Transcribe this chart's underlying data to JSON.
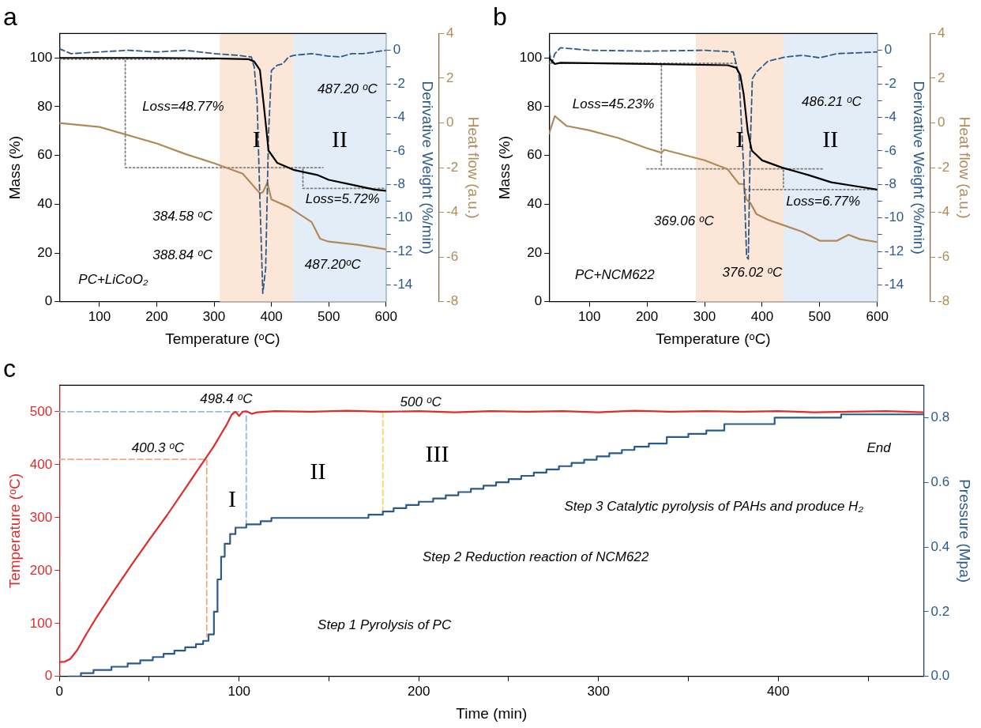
{
  "chart_data": [
    {
      "type": "line",
      "title": "a",
      "xlabel": "Temperature (ᵒC)",
      "ylabel": "Mass (%)",
      "y2label": "Derivative Weight (%/min)",
      "y3label": "Heat flow (a.u.)",
      "xlim": [
        30,
        600
      ],
      "xticks": [
        100,
        200,
        300,
        400,
        500,
        600
      ],
      "ylim": [
        0,
        110
      ],
      "yticks": [
        0,
        20,
        40,
        60,
        80,
        100
      ],
      "y2lim": [
        -15,
        1
      ],
      "y2ticks": [
        0,
        {
          "value": -1,
          "label": null
        },
        -2,
        {
          "value": -3,
          "label": null
        },
        -4,
        {
          "value": -5,
          "label": null
        },
        -6,
        {
          "value": -7,
          "label": null
        },
        -8,
        {
          "value": -9,
          "label": null
        },
        -10,
        {
          "value": -11,
          "label": null
        },
        -12,
        {
          "value": -13,
          "label": null
        },
        -14
      ],
      "y3lim": [
        -8,
        4
      ],
      "y3ticks": [
        4,
        2,
        0,
        -2,
        -4,
        -6,
        -8
      ],
      "grid": false,
      "legend": false,
      "bands": [
        {
          "axis": "x",
          "from": 310,
          "to": 438,
          "label": "I",
          "color": "#fbe6d8"
        },
        {
          "axis": "x",
          "from": 438,
          "to": 600,
          "label": "II",
          "color": "#e3edf8"
        }
      ],
      "series": [
        {
          "color": "#000000",
          "axis": "y",
          "line_style": "solid",
          "x": [
            30,
            100,
            200,
            300,
            360,
            370,
            380,
            387,
            395,
            410,
            440,
            480,
            500,
            540,
            580,
            600
          ],
          "values": [
            100,
            100,
            100,
            99.8,
            99.5,
            98.5,
            95,
            80,
            62,
            57,
            54,
            52,
            50,
            48,
            46,
            45.5
          ]
        },
        {
          "color": "#2e5a88",
          "axis": "y2",
          "line_style": "dashed",
          "x": [
            30,
            50,
            100,
            150,
            200,
            250,
            300,
            340,
            365,
            370,
            375,
            380,
            385,
            390,
            395,
            400,
            410,
            420,
            430,
            440,
            470,
            500,
            520,
            540,
            560,
            600
          ],
          "values": [
            0.1,
            -0.2,
            -0.1,
            0.0,
            -0.1,
            0.0,
            -0.2,
            -0.3,
            -0.4,
            -1,
            -3,
            -9,
            -14.5,
            -13,
            -5,
            -1.2,
            -0.9,
            -0.8,
            -0.4,
            -0.3,
            -0.2,
            -0.35,
            -0.4,
            -0.2,
            -0.2,
            0
          ]
        },
        {
          "color": "#b08a5a",
          "axis": "y3",
          "line_style": "solid",
          "x": [
            30,
            100,
            200,
            250,
            300,
            350,
            380,
            385,
            393,
            400,
            430,
            470,
            485,
            500,
            550,
            600
          ],
          "values": [
            0,
            -0.18,
            -0.92,
            -1.39,
            -1.8,
            -2.27,
            -3.15,
            -3.1,
            -2.68,
            -3.42,
            -3.76,
            -4.43,
            -5.18,
            -5.31,
            -5.45,
            -5.65
          ]
        },
        {
          "color": "#808080",
          "axis": "y",
          "line_style": "dotted",
          "x": [
            30,
            300
          ],
          "values": [
            99.5,
            99.5
          ]
        },
        {
          "color": "#808080",
          "axis": "y",
          "line_style": "dotted",
          "x": [
            145,
            490
          ],
          "values": [
            55,
            55
          ]
        },
        {
          "color": "#808080",
          "axis": "y",
          "line_style": "dotted",
          "x": [
            455,
            600
          ],
          "values": [
            46.5,
            46.5
          ]
        },
        {
          "color": "#808080",
          "axis": "y",
          "line_style": "dotted",
          "x": [
            145,
            145
          ],
          "values": [
            99,
            56
          ]
        },
        {
          "color": "#808080",
          "axis": "y",
          "line_style": "dotted",
          "x": [
            455,
            455
          ],
          "values": [
            54.5,
            47.5
          ]
        }
      ],
      "annotations": [
        "Loss=48.77%",
        "487.20 ᵒC",
        "Loss=5.72%",
        "384.58 ᵒC",
        "388.84 ᵒC",
        "487.20ᵒC",
        "PC+LiCoO₂"
      ]
    },
    {
      "type": "line",
      "title": "b",
      "xlabel": "Temperature (ᵒC)",
      "ylabel": "Mass (%)",
      "y2label": "Derivative Weight (%/min)",
      "y3label": "Heat flow (a.u.)",
      "xlim": [
        30,
        600
      ],
      "xticks": [
        100,
        200,
        300,
        400,
        500,
        600
      ],
      "ylim": [
        0,
        110
      ],
      "yticks": [
        0,
        20,
        40,
        60,
        80,
        100
      ],
      "y2lim": [
        -15,
        1
      ],
      "y2ticks": [
        0,
        {
          "value": -1,
          "label": null
        },
        -2,
        {
          "value": -3,
          "label": null
        },
        -4,
        {
          "value": -5,
          "label": null
        },
        -6,
        {
          "value": -7,
          "label": null
        },
        -8,
        {
          "value": -9,
          "label": null
        },
        -10,
        {
          "value": -11,
          "label": null
        },
        -12,
        {
          "value": -13,
          "label": null
        },
        -14
      ],
      "y3lim": [
        -8,
        4
      ],
      "y3ticks": [
        4,
        2,
        0,
        -2,
        -4,
        -6,
        -8
      ],
      "grid": false,
      "legend": false,
      "bands": [
        {
          "axis": "x",
          "from": 285,
          "to": 437,
          "label": "I",
          "color": "#fbe6d8"
        },
        {
          "axis": "x",
          "from": 437,
          "to": 600,
          "label": "II",
          "color": "#e3edf8"
        }
      ],
      "series": [
        {
          "color": "#000000",
          "axis": "y",
          "line_style": "solid",
          "x": [
            30,
            40,
            50,
            200,
            340,
            355,
            362,
            368,
            375,
            382,
            400,
            435,
            480,
            520,
            560,
            600
          ],
          "values": [
            100,
            97.5,
            98,
            97.5,
            97,
            96,
            93,
            85,
            70,
            62,
            58,
            55,
            52,
            49,
            47.5,
            46
          ]
        },
        {
          "color": "#2e5a88",
          "axis": "y2",
          "line_style": "dashed",
          "x": [
            30,
            35,
            40,
            50,
            100,
            200,
            300,
            350,
            360,
            368,
            373,
            376,
            379,
            383,
            390,
            410,
            440,
            470,
            500,
            530,
            600
          ],
          "values": [
            -0.1,
            -0.75,
            -0.2,
            0.15,
            0,
            -0.05,
            0,
            -0.1,
            -1.55,
            -7.1,
            -12.3,
            -12.45,
            -6.2,
            -1.7,
            -1.3,
            -0.65,
            -0.4,
            -0.3,
            -0.45,
            -0.2,
            -0.1
          ]
        },
        {
          "color": "#b08a5a",
          "axis": "y3",
          "line_style": "solid",
          "x": [
            30,
            40,
            45,
            60,
            100,
            150,
            200,
            225,
            230,
            300,
            340,
            360,
            368,
            372,
            380,
            390,
            410,
            440,
            470,
            500,
            530,
            550,
            570,
            600
          ],
          "values": [
            -0.47,
            0.31,
            0.2,
            -0.13,
            -0.33,
            -0.67,
            -1.13,
            -1.33,
            -1.2,
            -1.67,
            -2.07,
            -2.73,
            -2.73,
            -3.4,
            -3.6,
            -4.07,
            -4.33,
            -4.6,
            -4.87,
            -5.27,
            -5.27,
            -5.0,
            -5.2,
            -5.33
          ]
        },
        {
          "color": "#808080",
          "axis": "y",
          "line_style": "dotted",
          "x": [
            30,
            355
          ],
          "values": [
            97.8,
            97.8
          ]
        },
        {
          "color": "#808080",
          "axis": "y",
          "line_style": "dotted",
          "x": [
            200,
            505
          ],
          "values": [
            54.5,
            54.5
          ]
        },
        {
          "color": "#808080",
          "axis": "y",
          "line_style": "dotted",
          "x": [
            370,
            600
          ],
          "values": [
            46,
            46
          ]
        },
        {
          "color": "#808080",
          "axis": "y",
          "line_style": "dotted",
          "x": [
            225,
            225
          ],
          "values": [
            97,
            56
          ]
        },
        {
          "color": "#808080",
          "axis": "y",
          "line_style": "dotted",
          "x": [
            437,
            437
          ],
          "values": [
            54,
            47
          ]
        }
      ],
      "annotations": [
        "Loss=45.23%",
        "486.21 ᵒC",
        "Loss=6.77%",
        "369.06 ᵒC",
        "376.02 ᵒC",
        "PC+NCM622"
      ]
    },
    {
      "type": "line",
      "title": "c",
      "xlabel": "Time (min)",
      "ylabel": "Temperature (ᵒC)",
      "y2label": "Pressure (Mpa)",
      "xlim": [
        0,
        481
      ],
      "xticks": [
        0,
        {
          "value": 50,
          "label": null
        },
        100,
        {
          "value": 150,
          "label": null
        },
        200,
        {
          "value": 250,
          "label": null
        },
        300,
        {
          "value": 350,
          "label": null
        },
        400,
        {
          "value": 450,
          "label": null
        }
      ],
      "ylim": [
        0,
        550
      ],
      "yticks": [
        0,
        100,
        200,
        300,
        400,
        500
      ],
      "y2lim": [
        0,
        0.9
      ],
      "y2ticks": [
        {
          "value": 0,
          "label": "0.0"
        },
        0.2,
        0.4,
        0.6,
        0.8
      ],
      "grid": false,
      "legend": false,
      "series": [
        {
          "color": "#e02b2b",
          "axis": "y",
          "line_style": "solid",
          "x": [
            0,
            3,
            6,
            10,
            15,
            20,
            30,
            40,
            50,
            60,
            70,
            78,
            82,
            86,
            90,
            93,
            96,
            98,
            100,
            102,
            104,
            107,
            110,
            120,
            140,
            160,
            180,
            200,
            220,
            240,
            260,
            280,
            300,
            320,
            340,
            360,
            380,
            400,
            420,
            440,
            460,
            481
          ],
          "values": [
            27,
            28,
            33,
            50,
            80,
            108,
            160,
            210,
            258,
            305,
            355,
            395,
            415,
            435,
            458,
            475,
            495,
            500,
            492,
            500,
            501,
            496,
            499,
            501,
            500,
            502,
            500,
            501,
            499,
            501,
            500,
            501,
            499,
            502,
            500,
            501,
            500,
            501,
            499,
            500,
            501,
            499
          ]
        },
        {
          "type": "step",
          "color": "#2b5a8a",
          "axis": "y2",
          "line_style": "solid",
          "x": [
            5,
            12,
            19,
            29,
            38,
            45,
            52,
            58,
            64,
            70,
            76,
            80,
            83,
            86,
            88,
            90,
            92,
            95,
            98,
            104,
            112,
            118,
            170,
            172,
            180,
            186,
            193,
            200,
            208,
            215,
            222,
            229,
            236,
            243,
            250,
            257,
            264,
            271,
            278,
            285,
            292,
            299,
            306,
            313,
            320,
            328,
            338,
            350,
            360,
            370,
            398,
            435,
            481
          ],
          "values": [
            0,
            0.01,
            0.02,
            0.03,
            0.04,
            0.05,
            0.06,
            0.07,
            0.08,
            0.09,
            0.1,
            0.11,
            0.13,
            0.2,
            0.3,
            0.37,
            0.41,
            0.44,
            0.46,
            0.47,
            0.48,
            0.49,
            0.49,
            0.5,
            0.51,
            0.52,
            0.53,
            0.54,
            0.55,
            0.56,
            0.57,
            0.58,
            0.59,
            0.6,
            0.61,
            0.62,
            0.63,
            0.64,
            0.65,
            0.66,
            0.67,
            0.68,
            0.69,
            0.7,
            0.71,
            0.72,
            0.74,
            0.75,
            0.76,
            0.78,
            0.8,
            0.81,
            0.81
          ]
        },
        {
          "color": "#f4a58a",
          "axis": "y",
          "line_style": "dashed",
          "x": [
            0,
            82,
            82
          ],
          "values": [
            410,
            410,
            75
          ]
        },
        {
          "color": "#9fb5e6",
          "axis": "y",
          "line_style": "dashed",
          "x": [
            0,
            104,
            104
          ],
          "values": [
            500,
            500,
            290
          ]
        },
        {
          "color": "#f7d36b",
          "axis": "y",
          "line_style": "dashed",
          "x": [
            180,
            180
          ],
          "values": [
            500,
            310
          ]
        }
      ],
      "annotations": [
        "400.3 ᵒC",
        "498.4 ᵒC",
        "500 ᵒC",
        "I",
        "II",
        "III",
        "Step 1 Pyrolysis of PC",
        "Step 2 Reduction reaction of NCM622",
        "Step 3 Catalytic pyrolysis of PAHs and produce H₂",
        "End"
      ]
    }
  ]
}
